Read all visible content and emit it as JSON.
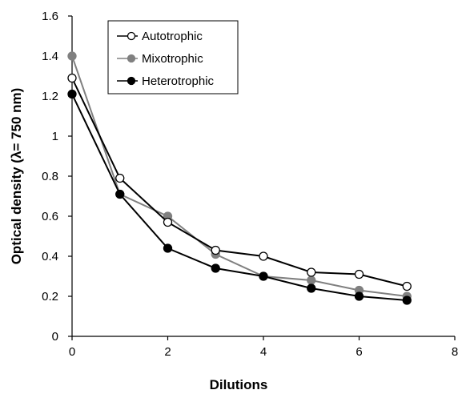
{
  "chart_data": {
    "type": "line",
    "title": "",
    "xlabel": "Dilutions",
    "ylabel": "Optical density (λ= 750 nm)",
    "xlim": [
      0,
      8
    ],
    "ylim": [
      0,
      1.6
    ],
    "xticks": [
      0,
      2,
      4,
      6,
      8
    ],
    "yticks": [
      0,
      0.2,
      0.4,
      0.6,
      0.8,
      1,
      1.2,
      1.4,
      1.6
    ],
    "grid": false,
    "legend_position": "top-left",
    "x": [
      0,
      1,
      2,
      3,
      4,
      5,
      6,
      7
    ],
    "series": [
      {
        "name": "Autotrophic",
        "values": [
          1.29,
          0.79,
          0.57,
          0.43,
          0.4,
          0.32,
          0.31,
          0.25
        ],
        "marker": "open-circle",
        "line_color": "#000000",
        "marker_fill": "#ffffff",
        "marker_stroke": "#000000"
      },
      {
        "name": "Mixotrophic",
        "values": [
          1.4,
          0.71,
          0.6,
          0.41,
          0.3,
          0.28,
          0.23,
          0.2
        ],
        "marker": "filled-circle",
        "line_color": "#808080",
        "marker_fill": "#808080",
        "marker_stroke": "#808080"
      },
      {
        "name": "Heterotrophic",
        "values": [
          1.21,
          0.71,
          0.44,
          0.34,
          0.3,
          0.24,
          0.2,
          0.18
        ],
        "marker": "filled-circle",
        "line_color": "#000000",
        "marker_fill": "#000000",
        "marker_stroke": "#000000"
      }
    ]
  }
}
